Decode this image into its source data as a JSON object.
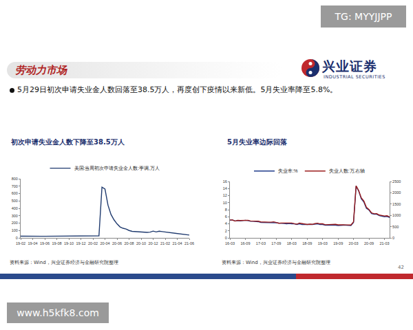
{
  "slide": {
    "tag": "TG: MYYJJPP",
    "section": "劳动力市场",
    "logo_cn": "兴业证券",
    "logo_en": "INDUSTRIAL SECURITIES",
    "bullet": "5月29日初次申请失业金人数回落至38.5万人，再度创下疫情以来新低。5月失业率降至5.8%。",
    "page": "42",
    "watermark": "www.h5kfk8.com"
  },
  "chart_data": [
    {
      "type": "line",
      "title": "初次申请失业金人数下降至38.5万人",
      "source": "资料来源：Wind，兴业证券经济与金融研究院整理",
      "categories": [
        "19-02",
        null,
        null,
        null,
        "19-04",
        null,
        null,
        null,
        "19-06",
        null,
        null,
        null,
        "19-08",
        null,
        null,
        null,
        "19-10",
        null,
        null,
        null,
        "19-12",
        null,
        null,
        null,
        "20-02",
        null,
        null,
        null,
        "20-04",
        null,
        null,
        null,
        "20-06",
        null,
        null,
        null,
        "20-08",
        null,
        null,
        null,
        "20-10",
        null,
        null,
        null,
        "20-12",
        null,
        null,
        null,
        "21-02",
        null,
        null,
        null,
        "21-04",
        null,
        null,
        null,
        "21-06"
      ],
      "series": [
        {
          "name": "美国:当周初次申请失业金人数:季调,万人",
          "color": "#1f3a6e",
          "values": [
            23,
            22,
            22,
            21,
            20,
            21,
            21,
            22,
            22,
            22,
            21,
            21,
            21,
            22,
            21,
            21,
            21,
            22,
            22,
            23,
            23,
            21,
            21,
            22,
            21,
            22,
            28,
            687,
            661,
            443,
            317,
            244,
            190,
            148,
            130,
            120,
            100,
            88,
            86,
            83,
            78,
            75,
            74,
            78,
            92,
            80,
            90,
            85,
            80,
            76,
            72,
            68,
            58,
            55,
            50,
            44,
            38.5
          ]
        }
      ],
      "ylim": [
        0,
        800
      ],
      "yticks": [
        0,
        100,
        200,
        300,
        400,
        500,
        600,
        700,
        800
      ],
      "grid": false,
      "legend": "top"
    },
    {
      "type": "line",
      "title": "5月失业率边际回落",
      "source": "资料来源：Wind，兴业证券经济与金融研究院整理",
      "categories": [
        "16-03",
        null,
        null,
        null,
        null,
        null,
        "16-09",
        null,
        null,
        null,
        null,
        null,
        "17-03",
        null,
        null,
        null,
        null,
        null,
        "17-09",
        null,
        null,
        null,
        null,
        null,
        "18-03",
        null,
        null,
        null,
        null,
        null,
        "18-09",
        null,
        null,
        null,
        null,
        null,
        "19-03",
        null,
        null,
        null,
        null,
        null,
        "19-09",
        null,
        null,
        null,
        null,
        null,
        "20-03",
        null,
        null,
        null,
        null,
        null,
        "20-09",
        null,
        null,
        null,
        null,
        null,
        "21-03",
        null,
        null
      ],
      "series": [
        {
          "name": "失业率:%",
          "color": "#1f3a8a",
          "values": [
            5.0,
            5.1,
            4.8,
            4.9,
            4.8,
            4.9,
            5.0,
            4.9,
            4.7,
            4.7,
            4.7,
            4.6,
            4.4,
            4.4,
            4.4,
            4.3,
            4.4,
            4.4,
            4.3,
            4.2,
            4.2,
            4.1,
            4.0,
            4.1,
            4.0,
            4.0,
            3.8,
            4.0,
            3.8,
            3.8,
            3.7,
            3.8,
            3.8,
            3.9,
            4.0,
            3.8,
            3.8,
            3.6,
            3.6,
            3.6,
            3.7,
            3.6,
            3.5,
            3.6,
            3.6,
            3.6,
            3.5,
            3.5,
            4.4,
            14.7,
            13.3,
            11.1,
            10.2,
            8.4,
            7.9,
            6.9,
            6.7,
            6.7,
            6.3,
            6.2,
            6.0,
            6.1,
            5.8
          ]
        },
        {
          "name": "失业人数:万,右轴",
          "color": "#9b1c1c",
          "axis": "y2",
          "values": [
            796,
            792,
            745,
            776,
            770,
            780,
            790,
            780,
            752,
            753,
            750,
            738,
            710,
            702,
            686,
            697,
            698,
            713,
            680,
            650,
            658,
            658,
            665,
            643,
            658,
            629,
            607,
            656,
            629,
            622,
            596,
            608,
            600,
            631,
            650,
            623,
            624,
            582,
            588,
            598,
            606,
            603,
            578,
            586,
            581,
            575,
            580,
            572,
            714,
            2308,
            2098,
            1775,
            1632,
            1355,
            1258,
            1107,
            1071,
            1074,
            1013,
            1001,
            971,
            982,
            932
          ]
        }
      ],
      "ylim": [
        0,
        16
      ],
      "yticks": [
        0,
        2,
        4,
        6,
        8,
        10,
        12,
        14,
        16
      ],
      "y2lim": [
        0,
        2500
      ],
      "y2ticks": [
        0,
        500,
        1000,
        1500,
        2000,
        2500
      ],
      "grid": false,
      "legend": "top"
    }
  ]
}
